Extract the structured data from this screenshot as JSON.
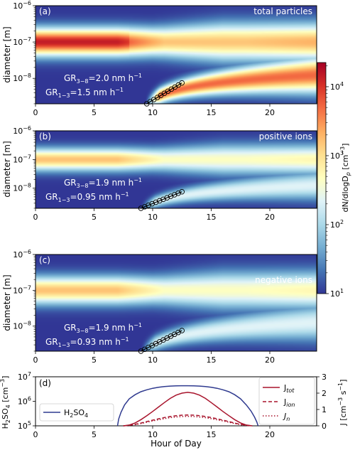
{
  "colors": {
    "colormap": [
      "#313695",
      "#4575b4",
      "#74add1",
      "#abd9e9",
      "#e0f3f8",
      "#ffffbf",
      "#fee090",
      "#fdae61",
      "#f46d43",
      "#d73027",
      "#a50026"
    ],
    "h2so4_line": "#2f3a8f",
    "j_lines": "#a8142c",
    "gr_fit_line": "#000000"
  },
  "colorbar": {
    "label": "dN/dlogD",
    "label_sub": "p",
    "label_unit": " [cm",
    "label_exp": "−3",
    "label_close": "]",
    "ticks": [
      {
        "base": "10",
        "exp": "1",
        "value": 1
      },
      {
        "base": "10",
        "exp": "2",
        "value": 2
      },
      {
        "base": "10",
        "exp": "3",
        "value": 3
      },
      {
        "base": "10",
        "exp": "4",
        "value": 4
      }
    ],
    "log_range": [
      1,
      4.35
    ]
  },
  "chart_data": [
    {
      "type": "heatmap",
      "panel": "(a)",
      "label": "total particles",
      "xlim": [
        0,
        24
      ],
      "ylim_log10": [
        -8.7,
        -6
      ],
      "xticks": [
        "0",
        "5",
        "10",
        "15",
        "20"
      ],
      "ylabel": "diameter [m]",
      "yticks": [
        {
          "base": "10",
          "exp": "−6",
          "value": -6
        },
        {
          "base": "10",
          "exp": "−7",
          "value": -7
        },
        {
          "base": "10",
          "exp": "−8",
          "value": -8
        }
      ],
      "background_mode": {
        "diameter_m": 1e-07,
        "peak_log10_dNdlogDp": 3.9
      },
      "nucleation_mode_start_hour": 9.4,
      "growth_fit": {
        "start": [
          9.5,
          2e-09
        ],
        "end": [
          12.5,
          7.5e-09
        ],
        "points": 11
      },
      "growth_rates": [
        {
          "text": "GR",
          "sub": "3−8",
          "value": "=2.0 nm h",
          "exp": "−1"
        },
        {
          "text": "GR",
          "sub": "1−3",
          "value": "=1.5 nm h",
          "exp": "−1"
        }
      ]
    },
    {
      "type": "heatmap",
      "panel": "(b)",
      "label": "positive ions",
      "xlim": [
        0,
        24
      ],
      "ylim_log10": [
        -8.7,
        -6
      ],
      "xticks": [
        "0",
        "5",
        "10",
        "15",
        "20"
      ],
      "ylabel": "diameter [m]",
      "yticks": [
        {
          "base": "10",
          "exp": "−6",
          "value": -6
        },
        {
          "base": "10",
          "exp": "−7",
          "value": -7
        },
        {
          "base": "10",
          "exp": "−8",
          "value": -8
        }
      ],
      "background_mode": {
        "diameter_m": 1e-07,
        "peak_log10_dNdlogDp": 3.2
      },
      "nucleation_mode_start_hour": 9.0,
      "growth_fit": {
        "start": [
          9.0,
          2e-09
        ],
        "end": [
          12.5,
          7.5e-09
        ],
        "points": 12
      },
      "growth_rates": [
        {
          "text": "GR",
          "sub": "3−8",
          "value": "=1.9 nm h",
          "exp": "−1"
        },
        {
          "text": "GR",
          "sub": "1−3",
          "value": "=0.95 nm h",
          "exp": "−1"
        }
      ]
    },
    {
      "type": "heatmap",
      "panel": "(c)",
      "label": "negative ions",
      "xlim": [
        0,
        24
      ],
      "ylim_log10": [
        -8.7,
        -6
      ],
      "xticks": [
        "0",
        "5",
        "10",
        "15",
        "20"
      ],
      "ylabel": "diameter [m]",
      "yticks": [
        {
          "base": "10",
          "exp": "−6",
          "value": -6
        },
        {
          "base": "10",
          "exp": "−7",
          "value": -7
        },
        {
          "base": "10",
          "exp": "−8",
          "value": -8
        }
      ],
      "background_mode": {
        "diameter_m": 1e-07,
        "peak_log10_dNdlogDp": 3.2
      },
      "nucleation_mode_start_hour": 9.0,
      "growth_fit": {
        "start": [
          9.0,
          2e-09
        ],
        "end": [
          12.5,
          7.5e-09
        ],
        "points": 12
      },
      "growth_rates": [
        {
          "text": "GR",
          "sub": "3−8",
          "value": "=1.9 nm h",
          "exp": "−1"
        },
        {
          "text": "GR",
          "sub": "1−3",
          "value": "=0.93 nm h",
          "exp": "−1"
        }
      ]
    },
    {
      "type": "line",
      "panel": "(d)",
      "xlabel": "Hour of Day",
      "xlim": [
        0,
        24
      ],
      "xticks": [
        "0",
        "5",
        "10",
        "15",
        "20"
      ],
      "ylabel_left": {
        "text": "H",
        "sub": "2",
        "text2": "SO",
        "sub2": "4",
        "unit": " [cm",
        "exp": "−3",
        "close": "]"
      },
      "ylabel_right": {
        "text": "J [cm",
        "exp": "−3",
        "mid": " s",
        "exp2": "−1",
        "close": "]"
      },
      "ylim_left_log10": [
        5,
        7
      ],
      "yticks_left": [
        {
          "base": "10",
          "exp": "5",
          "value": 5
        },
        {
          "base": "10",
          "exp": "6",
          "value": 6
        },
        {
          "base": "10",
          "exp": "7",
          "value": 7
        }
      ],
      "ylim_right": [
        0,
        3
      ],
      "yticks_right": [
        "0",
        "1",
        "2",
        "3"
      ],
      "series": [
        {
          "name": "H2SO4",
          "legend_text": "H",
          "legend_sub1": "2",
          "legend_mid": "SO",
          "legend_sub2": "4",
          "axis": "left",
          "style": "solid",
          "x": [
            7,
            7.1,
            7.3,
            7.6,
            8,
            8.5,
            9,
            9.5,
            10,
            10.5,
            11,
            11.5,
            12,
            12.5,
            13,
            13.5,
            14,
            14.5,
            15,
            15.5,
            16,
            16.5,
            17,
            17.5,
            18,
            18.4,
            18.7,
            18.9,
            19
          ],
          "y": [
            5.0,
            5.28,
            5.55,
            5.85,
            6.1,
            6.27,
            6.39,
            6.47,
            6.53,
            6.57,
            6.6,
            6.62,
            6.63,
            6.635,
            6.635,
            6.63,
            6.62,
            6.6,
            6.57,
            6.53,
            6.47,
            6.39,
            6.27,
            6.1,
            5.85,
            5.6,
            5.35,
            5.15,
            5.0
          ]
        },
        {
          "name": "J_tot",
          "legend_text": "J",
          "legend_sub": "tot",
          "axis": "right",
          "style": "solid",
          "x": [
            7.5,
            8,
            8.5,
            9,
            9.5,
            10,
            10.5,
            11,
            11.5,
            12,
            12.5,
            13,
            13.5,
            14,
            14.5,
            15,
            15.5,
            16,
            16.5,
            17,
            17.5,
            18,
            18.5
          ],
          "y": [
            0.0,
            0.05,
            0.18,
            0.38,
            0.62,
            0.88,
            1.15,
            1.42,
            1.68,
            1.88,
            2.0,
            2.05,
            2.0,
            1.88,
            1.68,
            1.42,
            1.15,
            0.88,
            0.62,
            0.38,
            0.18,
            0.05,
            0.0
          ]
        },
        {
          "name": "J_ion",
          "legend_text": "J",
          "legend_sub": "ion",
          "axis": "right",
          "style": "dashed",
          "x": [
            7.5,
            8,
            8.5,
            9,
            9.5,
            10,
            10.5,
            11,
            11.5,
            12,
            12.5,
            13,
            13.5,
            14,
            14.5,
            15,
            15.5,
            16,
            16.5,
            17,
            17.5,
            18,
            18.5
          ],
          "y": [
            0.0,
            0.03,
            0.09,
            0.17,
            0.26,
            0.35,
            0.43,
            0.51,
            0.57,
            0.62,
            0.65,
            0.66,
            0.65,
            0.62,
            0.57,
            0.51,
            0.43,
            0.35,
            0.26,
            0.17,
            0.09,
            0.03,
            0.0
          ]
        },
        {
          "name": "J_n",
          "legend_text": "J",
          "legend_sub": "n",
          "axis": "right",
          "style": "dotted",
          "x": [
            7.5,
            8,
            8.5,
            9,
            9.5,
            10,
            10.5,
            11,
            11.5,
            12,
            12.5,
            13,
            13.5,
            14,
            14.5,
            15,
            15.5,
            16,
            16.5,
            17,
            17.5,
            18,
            18.5
          ],
          "y": [
            0.0,
            0.02,
            0.07,
            0.14,
            0.22,
            0.3,
            0.37,
            0.44,
            0.5,
            0.54,
            0.57,
            0.58,
            0.57,
            0.54,
            0.5,
            0.44,
            0.37,
            0.3,
            0.22,
            0.14,
            0.07,
            0.02,
            0.0
          ]
        }
      ]
    }
  ]
}
